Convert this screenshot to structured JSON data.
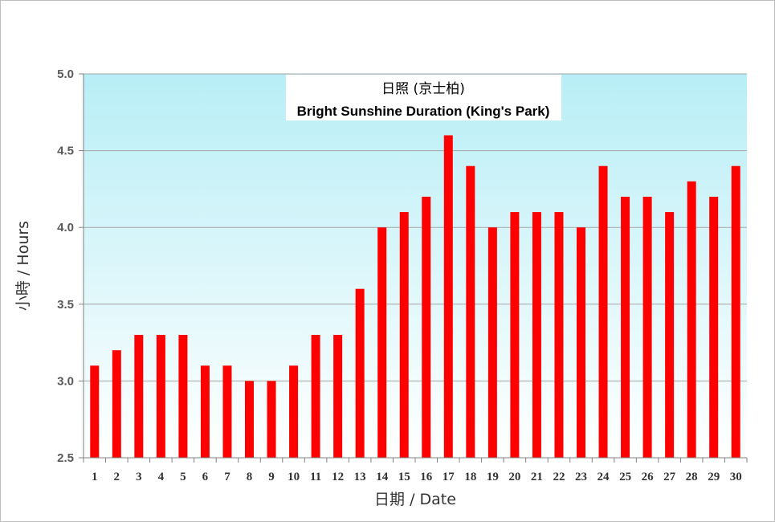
{
  "chart_data": {
    "type": "bar",
    "title": "日照 (京士柏)",
    "subtitle": "Bright Sunshine Duration (King's Park)",
    "xlabel": "日期 / Date",
    "ylabel": "小時 / Hours",
    "ylim": [
      2.5,
      5.0
    ],
    "yticks": [
      "2.5",
      "3.0",
      "3.5",
      "4.0",
      "4.5",
      "5.0"
    ],
    "grid": true,
    "bar_color": "#ff0000",
    "background_gradient": [
      "#b8eef6",
      "#ffffff"
    ],
    "categories": [
      "1",
      "2",
      "3",
      "4",
      "5",
      "6",
      "7",
      "8",
      "9",
      "10",
      "11",
      "12",
      "13",
      "14",
      "15",
      "16",
      "17",
      "18",
      "19",
      "20",
      "21",
      "22",
      "23",
      "24",
      "25",
      "26",
      "27",
      "28",
      "29",
      "30"
    ],
    "values": [
      3.1,
      3.2,
      3.3,
      3.3,
      3.3,
      3.1,
      3.1,
      3.0,
      3.0,
      3.1,
      3.3,
      3.3,
      3.6,
      4.0,
      4.1,
      4.2,
      4.6,
      4.4,
      4.0,
      4.1,
      4.1,
      4.1,
      4.0,
      4.4,
      4.2,
      4.2,
      4.1,
      4.3,
      4.2,
      4.4
    ]
  }
}
